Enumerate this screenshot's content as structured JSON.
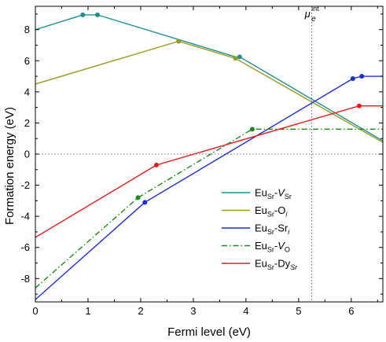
{
  "chart_data": {
    "type": "line",
    "title": "",
    "xlabel": "Fermi level (eV)",
    "ylabel": "Formation energy (eV)",
    "xlim": [
      0,
      6.6
    ],
    "ylim": [
      -9.5,
      9.5
    ],
    "xticks": [
      0,
      1,
      2,
      3,
      4,
      5,
      6
    ],
    "yticks": [
      -8,
      -6,
      -4,
      -2,
      0,
      2,
      4,
      6,
      8
    ],
    "zero_line": true,
    "vline": {
      "x": 5.25,
      "label": "μ",
      "label_sub": "e",
      "label_sup": "int"
    },
    "legend_position": "lower-right",
    "series": [
      {
        "key": "VSr",
        "legend": [
          "Eu",
          "Sr",
          "-",
          "V",
          "Sr"
        ],
        "color": "#1a8f8f",
        "dash": "solid",
        "points": [
          [
            0,
            8.0
          ],
          [
            0.9,
            8.95
          ],
          [
            1.18,
            8.95
          ],
          [
            3.8,
            6.25
          ],
          [
            3.88,
            6.25
          ],
          [
            6.6,
            0.85
          ]
        ],
        "markers": [
          [
            0.9,
            8.95
          ],
          [
            1.18,
            8.95
          ],
          [
            3.88,
            6.25
          ]
        ]
      },
      {
        "key": "Oi",
        "legend": [
          "Eu",
          "Sr",
          "-O",
          "i",
          ""
        ],
        "color": "#9a9a1a",
        "dash": "solid",
        "points": [
          [
            0,
            4.5
          ],
          [
            2.72,
            7.25
          ],
          [
            3.8,
            6.15
          ],
          [
            6.6,
            0.75
          ]
        ],
        "markers": [
          [
            2.72,
            7.25
          ],
          [
            3.8,
            6.15
          ]
        ]
      },
      {
        "key": "Sri",
        "legend": [
          "Eu",
          "Sr",
          "-Sr",
          "i",
          ""
        ],
        "color": "#1a2ed6",
        "dash": "solid",
        "points": [
          [
            0,
            -9.35
          ],
          [
            2.08,
            -3.1
          ],
          [
            6.03,
            4.85
          ],
          [
            6.2,
            5.0
          ],
          [
            6.6,
            5.0
          ]
        ],
        "markers": [
          [
            2.08,
            -3.1
          ],
          [
            6.03,
            4.85
          ],
          [
            6.2,
            5.0
          ]
        ]
      },
      {
        "key": "VO",
        "legend": [
          "Eu",
          "Sr",
          "-",
          "V",
          "O"
        ],
        "color": "#1a8a1a",
        "dash": "dashdot",
        "points": [
          [
            0,
            -8.6
          ],
          [
            1.95,
            -2.8
          ],
          [
            4.12,
            1.6
          ],
          [
            6.6,
            1.6
          ]
        ],
        "markers": [
          [
            1.95,
            -2.8
          ],
          [
            4.12,
            1.6
          ]
        ]
      },
      {
        "key": "DySr",
        "legend": [
          "Eu",
          "Sr",
          "-Dy",
          "Sr",
          ""
        ],
        "color": "#e81a1a",
        "dash": "solid",
        "points": [
          [
            0,
            -5.35
          ],
          [
            2.3,
            -0.7
          ],
          [
            6.15,
            3.1
          ],
          [
            6.6,
            3.1
          ]
        ],
        "markers": [
          [
            2.3,
            -0.7
          ],
          [
            6.15,
            3.1
          ]
        ]
      }
    ]
  }
}
